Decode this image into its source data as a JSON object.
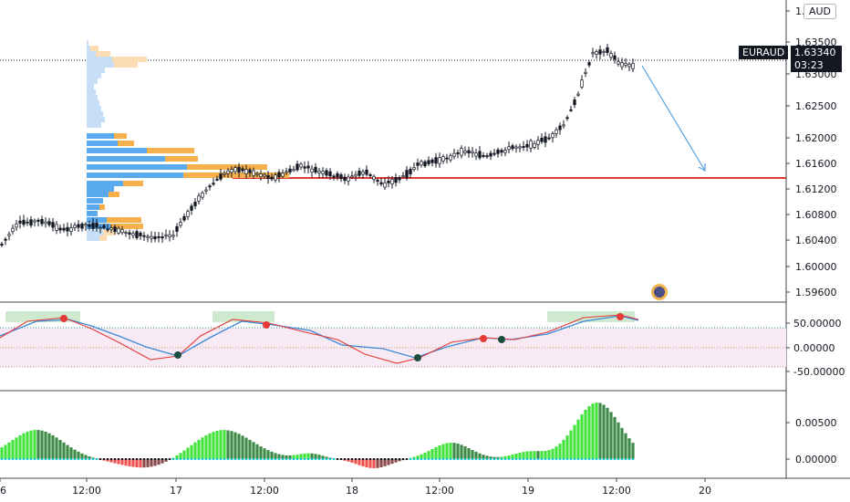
{
  "header": {
    "currency": "AUD"
  },
  "symbol": {
    "name": "EURAUD",
    "last_price": "1.63340",
    "countdown": "03:23"
  },
  "price_axis": [
    "1.6",
    "1.63500",
    "1.63000",
    "1.62500",
    "1.62000",
    "1.61600",
    "1.61200",
    "1.60800",
    "1.60400",
    "1.60000",
    "1.59600"
  ],
  "osc_axis": [
    "50.00000",
    "0.00000",
    "-50.00000"
  ],
  "hist_axis": [
    "0.00500",
    "0.00000"
  ],
  "time_axis": [
    "6",
    "12:00",
    "17",
    "12:00",
    "18",
    "12:00",
    "19",
    "12:00",
    "20"
  ],
  "colors": {
    "up": "#131722",
    "hline": "#e53935",
    "arrow": "#5aa0e0",
    "vp_blue": "#5aaaf0",
    "vp_orange": "#f6b04e",
    "vp_blue_light": "#c6dff7",
    "vp_orange_light": "#fbdcb3",
    "osc_red": "#e53935",
    "osc_blue": "#3c88d8",
    "osc_band": "#f7eaf4",
    "hist_green": "#43e33b",
    "hist_dark": "#3d8a46",
    "hist_red": "#ef5350",
    "hist_dark_red": "#8a4a4a"
  },
  "icons": {
    "settings": "gear-icon"
  }
}
